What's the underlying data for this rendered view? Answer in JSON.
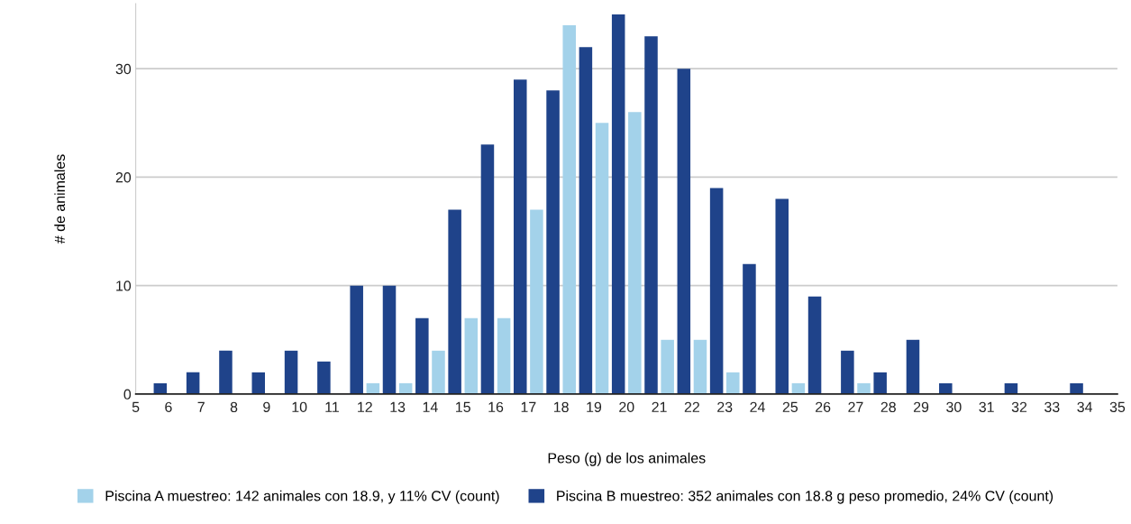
{
  "chart_data": {
    "type": "bar",
    "xlabel": "Peso (g) de los animales",
    "ylabel": "# de animales",
    "xlim": [
      5,
      35
    ],
    "xticks": [
      5,
      6,
      7,
      8,
      9,
      10,
      11,
      12,
      13,
      14,
      15,
      16,
      17,
      18,
      19,
      20,
      21,
      22,
      23,
      24,
      25,
      26,
      27,
      28,
      29,
      30,
      31,
      32,
      33,
      34,
      35
    ],
    "ylim": [
      0,
      36
    ],
    "yticks": [
      0,
      10,
      20,
      30
    ],
    "grid": "y",
    "legend": "bottom",
    "series": [
      {
        "name": "Piscina A muestreo: 142 animales con 18.9, y 11% CV (count)",
        "color": "#a3d2ea",
        "x": [
          12.25,
          13.25,
          14.25,
          15.25,
          16.25,
          17.25,
          18.25,
          19.25,
          20.25,
          21.25,
          22.25,
          23.25,
          25.25,
          27.25
        ],
        "values": [
          1,
          1,
          4,
          7,
          7,
          17,
          34,
          25,
          26,
          5,
          5,
          2,
          1,
          1
        ]
      },
      {
        "name": "Piscina B muestreo: 352 animales con 18.8 g peso promedio, 24% CV (count)",
        "color": "#1f438a",
        "x": [
          5.75,
          6.75,
          7.75,
          8.75,
          9.75,
          10.75,
          11.75,
          12.75,
          13.75,
          14.75,
          15.75,
          16.75,
          17.75,
          18.75,
          19.75,
          20.75,
          21.75,
          22.75,
          23.75,
          24.75,
          25.75,
          26.75,
          27.75,
          28.75,
          29.75,
          31.75,
          33.75
        ],
        "values": [
          1,
          2,
          4,
          2,
          4,
          3,
          10,
          10,
          7,
          17,
          23,
          29,
          28,
          32,
          35,
          33,
          30,
          19,
          12,
          18,
          9,
          4,
          2,
          5,
          1,
          1,
          1
        ]
      }
    ]
  }
}
